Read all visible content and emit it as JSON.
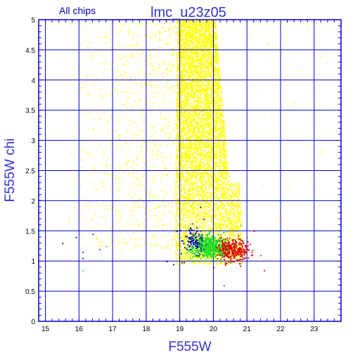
{
  "header": {
    "subset_label": "All chips",
    "title": "lmc_u23z05"
  },
  "chart_data": {
    "type": "scatter",
    "title": "lmc_u23z05",
    "subtitle": "All chips",
    "xlabel": "F555W",
    "ylabel": "F555W chi",
    "xlim": [
      14.8,
      23.8
    ],
    "ylim": [
      0,
      5
    ],
    "x_ticks": [
      15,
      16,
      17,
      18,
      19,
      20,
      21,
      22,
      23
    ],
    "y_ticks": [
      0,
      0.5,
      1,
      1.5,
      2,
      2.5,
      3,
      3.5,
      4,
      4.5,
      5
    ],
    "x_tick_labels": [
      "15",
      "16",
      "17",
      "18",
      "19",
      "20",
      "21",
      "22",
      "23"
    ],
    "y_tick_labels": [
      "0",
      "0.5",
      "1",
      "1.5",
      "2",
      "2.5",
      "3",
      "3.5",
      "4",
      "4.5",
      "5"
    ],
    "grid": true,
    "colors": {
      "grid": "#0000cc",
      "frame": "#0000cc",
      "title": "#3333cc",
      "yellow": "#ffff00",
      "green": "#22dd22",
      "red": "#dd0000",
      "blue": "#0000aa",
      "black": "#000000"
    },
    "series": [
      {
        "color": "yellow",
        "description_points": [
          [
            16.0,
            4.2
          ],
          [
            16.3,
            3.5
          ],
          [
            16.8,
            2.6
          ],
          [
            17.2,
            3.1
          ],
          [
            17.6,
            4.4
          ],
          [
            18.1,
            2.2
          ],
          [
            18.3,
            3.8
          ],
          [
            18.6,
            4.6
          ],
          [
            18.9,
            3.2
          ],
          [
            19.1,
            2.4
          ],
          [
            19.3,
            4.8
          ],
          [
            19.6,
            3.0
          ],
          [
            19.9,
            2.0
          ],
          [
            20.1,
            1.6
          ],
          [
            20.4,
            1.5
          ],
          [
            20.6,
            2.1
          ],
          [
            20.8,
            1.8
          ],
          [
            21.0,
            1.4
          ],
          [
            17.0,
            1.9
          ],
          [
            16.5,
            1.4
          ],
          [
            15.7,
            1.7
          ],
          [
            22.8,
            4.9
          ],
          [
            21.6,
            4.6
          ],
          [
            23.2,
            4.4
          ]
        ]
      },
      {
        "color": "green",
        "description_points": [
          [
            19.0,
            1.4
          ],
          [
            19.2,
            1.2
          ],
          [
            19.4,
            1.0
          ],
          [
            19.6,
            1.3
          ],
          [
            19.8,
            1.1
          ],
          [
            20.0,
            1.2
          ],
          [
            20.2,
            1.0
          ],
          [
            20.4,
            1.5
          ],
          [
            20.6,
            1.3
          ],
          [
            20.8,
            1.6
          ],
          [
            16.8,
            1.25
          ],
          [
            16.1,
            0.85
          ]
        ]
      },
      {
        "color": "red",
        "description_points": [
          [
            20.0,
            0.9
          ],
          [
            20.2,
            1.1
          ],
          [
            20.4,
            1.2
          ],
          [
            20.6,
            1.0
          ],
          [
            20.8,
            1.3
          ],
          [
            21.0,
            1.2
          ],
          [
            21.2,
            1.5
          ],
          [
            21.4,
            1.1
          ],
          [
            21.5,
            0.85
          ],
          [
            20.3,
            0.6
          ],
          [
            16.1,
            1.15
          ],
          [
            16.6,
            1.2
          ]
        ]
      },
      {
        "color": "blue",
        "description_points": [
          [
            18.9,
            1.5
          ],
          [
            19.1,
            1.3
          ],
          [
            19.3,
            1.2
          ],
          [
            19.5,
            1.1
          ],
          [
            19.7,
            1.7
          ],
          [
            19.6,
            1.9
          ],
          [
            16.4,
            1.45
          ],
          [
            16.1,
            1.05
          ]
        ]
      },
      {
        "color": "black",
        "description_points": [
          [
            15.5,
            1.3
          ],
          [
            15.9,
            1.4
          ],
          [
            18.6,
            1.0
          ],
          [
            18.8,
            0.95
          ]
        ]
      }
    ]
  }
}
